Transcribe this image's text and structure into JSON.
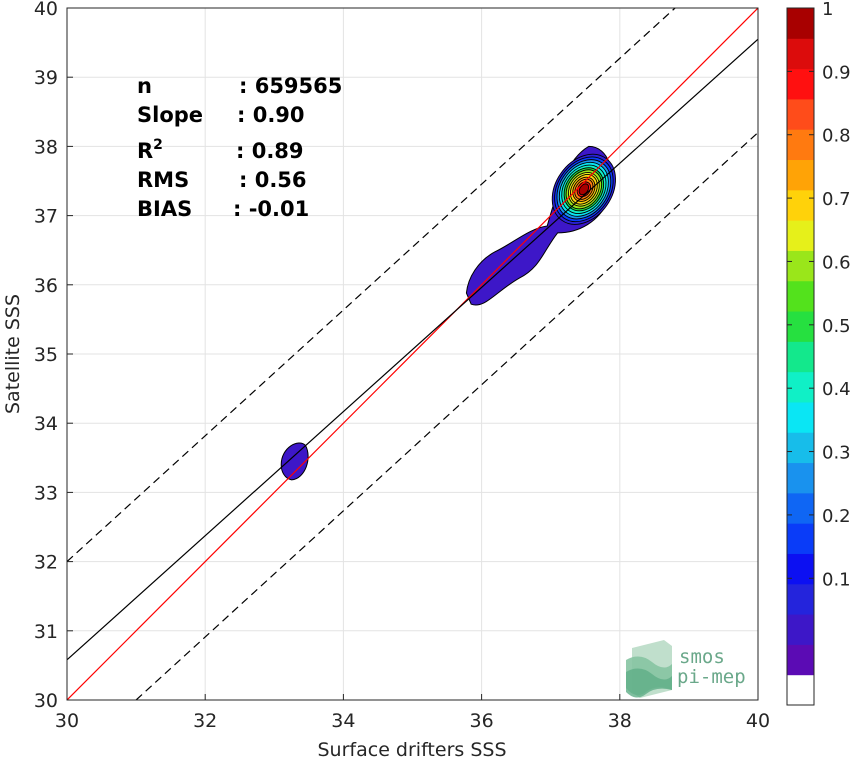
{
  "chart_data": {
    "type": "contour",
    "xlabel": "Surface drifters SSS",
    "ylabel": "Satellite SSS",
    "xlim": [
      30,
      40
    ],
    "ylim": [
      30,
      40
    ],
    "xticks": [
      "30",
      "32",
      "34",
      "36",
      "38",
      "40"
    ],
    "yticks": [
      "30",
      "31",
      "32",
      "33",
      "34",
      "35",
      "36",
      "37",
      "38",
      "39",
      "40"
    ],
    "grid": true,
    "stats": [
      {
        "label": "n",
        "value": ": 659565"
      },
      {
        "label": "Slope",
        "value": ": 0.90"
      },
      {
        "label": "R",
        "label_sup": "2",
        "value": ": 0.89"
      },
      {
        "label": "RMS",
        "value": ": 0.56"
      },
      {
        "label": "BIAS",
        "value": ": -0.01"
      }
    ],
    "lines": [
      {
        "kind": "one-to-one",
        "color": "#ff0000",
        "x": [
          30,
          40
        ],
        "y": [
          30,
          40
        ]
      },
      {
        "kind": "regression",
        "color": "#000000",
        "x": [
          30,
          40
        ],
        "y": [
          30.58,
          39.55
        ]
      },
      {
        "kind": "upper-bound",
        "color": "#000000",
        "style": "dashed",
        "x": [
          30,
          38.8
        ],
        "y": [
          32,
          40
        ]
      },
      {
        "kind": "lower-bound",
        "color": "#000000",
        "style": "dashed",
        "x": [
          31,
          40
        ],
        "y": [
          30,
          38.2
        ]
      }
    ],
    "density_peak": {
      "x": 37.48,
      "y": 37.38
    },
    "colorbar": {
      "ticks": [
        "0.1",
        "0.2",
        "0.3",
        "0.4",
        "0.5",
        "0.6",
        "0.7",
        "0.8",
        "0.9",
        "1"
      ],
      "levels": 20,
      "colors": [
        "#ffffff",
        "#5b0bb4",
        "#3d17c8",
        "#2424dc",
        "#0c10f2",
        "#0a3cf8",
        "#0f66f4",
        "#1992ee",
        "#17bdea",
        "#0ae6f4",
        "#10f0c6",
        "#13e88c",
        "#26e040",
        "#53e21c",
        "#9ae61a",
        "#e6f01a",
        "#ffd20a",
        "#ffa306",
        "#ff7a10",
        "#ff4c1a",
        "#ff1010",
        "#dc0c0c",
        "#a80000"
      ]
    },
    "logo": {
      "line1": "smos",
      "line2": "pi-mep"
    }
  }
}
